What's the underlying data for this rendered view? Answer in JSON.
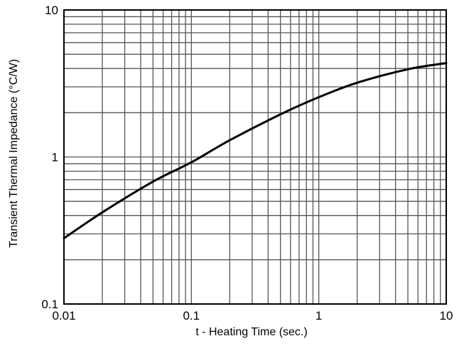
{
  "chart_data": {
    "type": "line",
    "title": "",
    "xlabel": "t - Heating Time (sec.)",
    "ylabel": "Transient Thermal Impedance (°C/W)",
    "x_scale": "log",
    "y_scale": "log",
    "xlim": [
      0.01,
      10
    ],
    "ylim": [
      0.1,
      10
    ],
    "x_ticks": [
      "0.01",
      "0.1",
      "1",
      "10"
    ],
    "y_ticks": [
      "0.1",
      "1",
      "10"
    ],
    "grid": true,
    "legend": "none",
    "series": [
      {
        "color": "#000000",
        "x": [
          0.01,
          0.02,
          0.05,
          0.1,
          0.2,
          0.5,
          1,
          2,
          5,
          10
        ],
        "y": [
          0.28,
          0.42,
          0.68,
          0.92,
          1.3,
          1.95,
          2.55,
          3.2,
          3.95,
          4.35
        ]
      }
    ]
  }
}
